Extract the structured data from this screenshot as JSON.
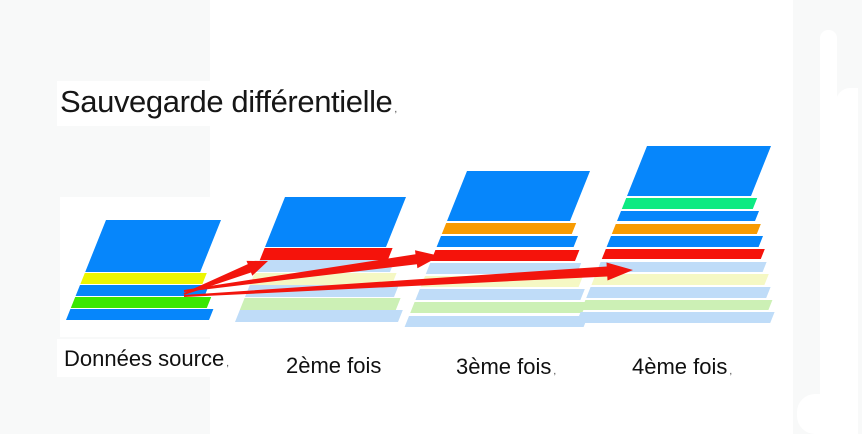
{
  "title": {
    "text": "Sauvegarde différentielle",
    "mark": ","
  },
  "colors": {
    "blue": "#0686fb",
    "yellow": "#ecf602",
    "green": "#3be702",
    "red": "#f5130b",
    "orange": "#f89b02",
    "mint": "#0eea82",
    "pale_blue": "#bfdcf8",
    "pale_yellow": "#f5f8c4",
    "pale_green": "#ccf0b5",
    "left_panel": "#f8f9f9",
    "canvas": "#ffffff",
    "arrow": "#f2150d"
  },
  "stacks": [
    {
      "label": "Données source",
      "mark": ",",
      "layers": [
        "blue",
        "yellow",
        "blue",
        "green",
        "blue"
      ]
    },
    {
      "label": "2ème fois",
      "mark": "",
      "layers": [
        "blue",
        "red",
        "pale_blue",
        "pale_yellow",
        "pale_blue",
        "pale_green",
        "pale_blue"
      ]
    },
    {
      "label": "3ème fois",
      "mark": ",",
      "layers": [
        "blue",
        "orange",
        "blue",
        "red",
        "pale_blue",
        "pale_yellow",
        "pale_blue",
        "pale_green",
        "pale_blue"
      ]
    },
    {
      "label": "4ème fois",
      "mark": ",",
      "layers": [
        "blue",
        "mint",
        "blue",
        "orange",
        "blue",
        "red",
        "pale_blue",
        "pale_yellow",
        "pale_blue",
        "pale_green",
        "pale_blue"
      ]
    }
  ],
  "arrows": {
    "color": "#f2150d",
    "from": "Données source",
    "targets": [
      "2ème fois",
      "3ème fois",
      "4ème fois"
    ]
  }
}
